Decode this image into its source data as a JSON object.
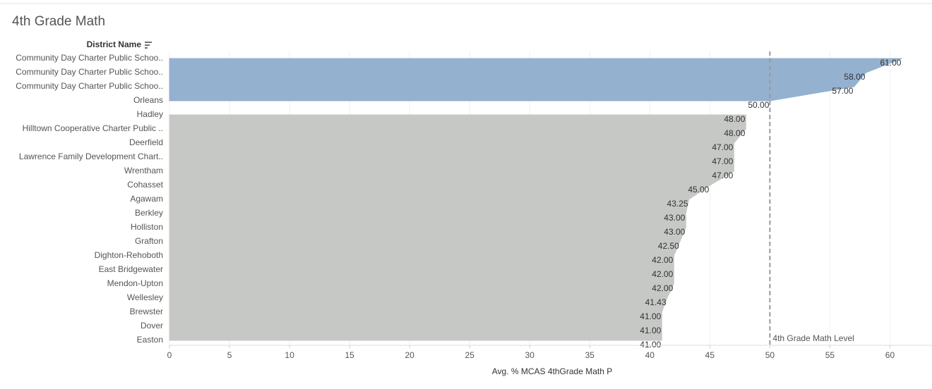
{
  "chart_data": {
    "type": "area",
    "orientation": "horizontal",
    "title": "4th Grade Math",
    "y_header": "District Name",
    "xlabel": "Avg. % MCAS 4thGrade Math P",
    "categories": [
      "Community Day Charter Public Schoo..",
      "Community Day Charter Public Schoo..",
      "Community Day Charter Public Schoo..",
      "Orleans",
      "Hadley",
      "Hilltown Cooperative Charter Public ..",
      "Deerfield",
      "Lawrence Family Development Chart..",
      "Wrentham",
      "Cohasset",
      "Agawam",
      "Berkley",
      "Holliston",
      "Grafton",
      "Dighton-Rehoboth",
      "East Bridgewater",
      "Mendon-Upton",
      "Wellesley",
      "Brewster",
      "Dover",
      "Easton"
    ],
    "series": [
      {
        "color": "#94b1cf",
        "values": [
          61,
          58,
          57,
          50,
          null,
          null,
          null,
          null,
          null,
          null,
          null,
          null,
          null,
          null,
          null,
          null,
          null,
          null,
          null,
          null,
          null
        ],
        "value_labels": [
          "61.00",
          "58.00",
          "57.00",
          "50.00",
          null,
          null,
          null,
          null,
          null,
          null,
          null,
          null,
          null,
          null,
          null,
          null,
          null,
          null,
          null,
          null,
          null
        ]
      },
      {
        "color": "#c5c8c4",
        "values": [
          null,
          null,
          null,
          null,
          48,
          48,
          47,
          47,
          47,
          45,
          43.25,
          43,
          43,
          42.5,
          42,
          42,
          42,
          41.43,
          41,
          41,
          41
        ],
        "value_labels": [
          null,
          null,
          null,
          null,
          "48.00",
          "48.00",
          "47.00",
          "47.00",
          "47.00",
          "45.00",
          "43.25",
          "43.00",
          "43.00",
          "42.50",
          "42.00",
          "42.00",
          "42.00",
          "41.43",
          "41.00",
          "41.00",
          "41.00"
        ]
      }
    ],
    "xlim": [
      0,
      63.5
    ],
    "xticks": [
      0,
      5,
      10,
      15,
      20,
      25,
      30,
      35,
      40,
      45,
      50,
      55,
      60
    ],
    "grid": true,
    "reference_line": {
      "value": 50,
      "label": "4th Grade Math Level"
    }
  }
}
